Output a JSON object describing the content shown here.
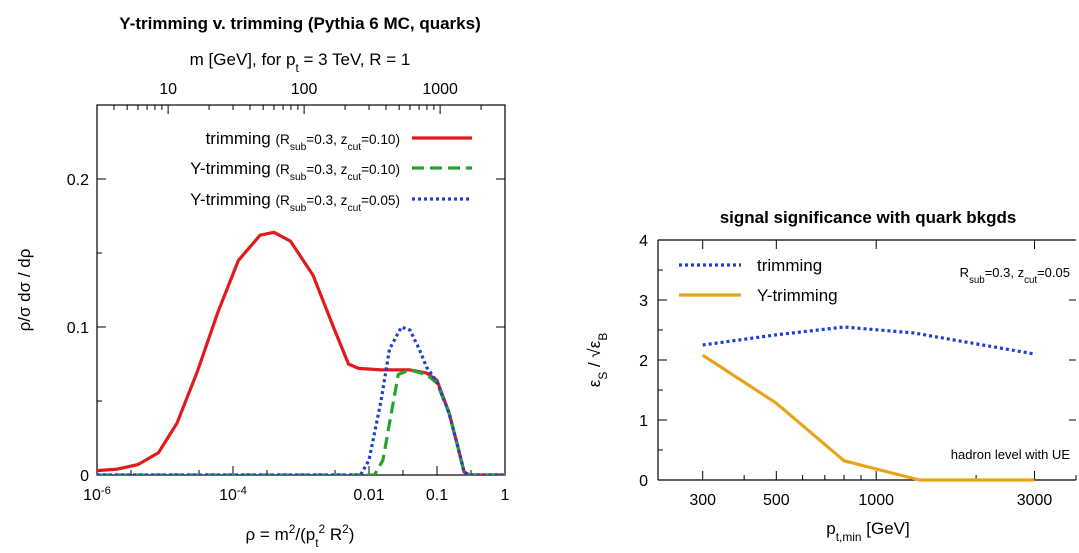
{
  "chart_data": [
    {
      "type": "line",
      "title": "Y-trimming v. trimming (Pythia 6 MC, quarks)",
      "top_axis": {
        "label_main": "m [GeV], for p",
        "label_sub": "t",
        "label_rest": " = 3 TeV, R = 1",
        "ticks": [
          {
            "value": 10,
            "label": "10"
          },
          {
            "value": 100,
            "label": "100"
          },
          {
            "value": 1000,
            "label": "1000"
          }
        ]
      },
      "xscale": "log",
      "xlim": [
        1e-06,
        1
      ],
      "ylim": [
        0,
        0.25
      ],
      "xlabel": "ρ = m²/(p_t² R²)",
      "ylabel": "ρ/σ dσ / dρ",
      "xticks": [
        {
          "value": 1e-06,
          "base": "10",
          "exp": "-6"
        },
        {
          "value": 0.0001,
          "base": "10",
          "exp": "-4"
        },
        {
          "value": 0.01,
          "base": "0.01",
          "exp": ""
        },
        {
          "value": 0.1,
          "base": "0.1",
          "exp": ""
        },
        {
          "value": 1,
          "base": "1",
          "exp": ""
        }
      ],
      "yticks": [
        {
          "value": 0,
          "label": "0"
        },
        {
          "value": 0.1,
          "label": "0.1"
        },
        {
          "value": 0.2,
          "label": "0.2"
        }
      ],
      "legend_position": "top-right",
      "series": [
        {
          "name": "trimming",
          "legend_params": "(R_sub=0.3, z_cut=0.10)",
          "color": "#e31a1c",
          "dash": "solid",
          "points": [
            [
              1e-06,
              0.003
            ],
            [
              2e-06,
              0.004
            ],
            [
              4e-06,
              0.007
            ],
            [
              8e-06,
              0.015
            ],
            [
              1.5e-05,
              0.035
            ],
            [
              3e-05,
              0.07
            ],
            [
              6e-05,
              0.11
            ],
            [
              0.00012,
              0.145
            ],
            [
              0.00025,
              0.162
            ],
            [
              0.0004,
              0.164
            ],
            [
              0.0007,
              0.158
            ],
            [
              0.0015,
              0.135
            ],
            [
              0.003,
              0.1
            ],
            [
              0.005,
              0.075
            ],
            [
              0.007,
              0.072
            ],
            [
              0.015,
              0.071
            ],
            [
              0.04,
              0.071
            ],
            [
              0.07,
              0.069
            ],
            [
              0.1,
              0.064
            ],
            [
              0.15,
              0.042
            ],
            [
              0.2,
              0.02
            ],
            [
              0.25,
              0.002
            ],
            [
              0.3,
              0.0
            ],
            [
              1,
              0.0
            ]
          ]
        },
        {
          "name": "Y-trimming",
          "legend_params": "(R_sub=0.3, z_cut=0.10)",
          "color": "#2ca02c",
          "dash": "dashed",
          "points": [
            [
              1e-06,
              0.0
            ],
            [
              0.012,
              0.0
            ],
            [
              0.016,
              0.01
            ],
            [
              0.02,
              0.035
            ],
            [
              0.027,
              0.068
            ],
            [
              0.04,
              0.071
            ],
            [
              0.07,
              0.068
            ],
            [
              0.1,
              0.062
            ],
            [
              0.15,
              0.042
            ],
            [
              0.2,
              0.02
            ],
            [
              0.25,
              0.002
            ],
            [
              0.3,
              0.0
            ],
            [
              1,
              0.0
            ]
          ]
        },
        {
          "name": "Y-trimming",
          "legend_params": "(R_sub=0.3, z_cut=0.05)",
          "color": "#1f3fd1",
          "dash": "dotted",
          "points": [
            [
              1e-06,
              0.0
            ],
            [
              0.0075,
              0.0
            ],
            [
              0.01,
              0.01
            ],
            [
              0.015,
              0.05
            ],
            [
              0.02,
              0.085
            ],
            [
              0.03,
              0.1
            ],
            [
              0.04,
              0.098
            ],
            [
              0.055,
              0.085
            ],
            [
              0.07,
              0.073
            ],
            [
              0.1,
              0.063
            ],
            [
              0.15,
              0.042
            ],
            [
              0.2,
              0.02
            ],
            [
              0.25,
              0.002
            ],
            [
              0.3,
              0.0
            ],
            [
              1,
              0.0
            ]
          ]
        }
      ]
    },
    {
      "type": "line",
      "title": "signal significance with quark bkgds",
      "xscale": "log",
      "xlim": [
        220,
        4000
      ],
      "ylim": [
        0,
        4
      ],
      "xlabel": "p_t,min [GeV]",
      "ylabel": "ε_S / √ε_B",
      "xticks": [
        {
          "value": 300,
          "label": "300"
        },
        {
          "value": 500,
          "label": "500"
        },
        {
          "value": 1000,
          "label": "1000"
        },
        {
          "value": 3000,
          "label": "3000"
        }
      ],
      "yticks": [
        {
          "value": 0,
          "label": "0"
        },
        {
          "value": 1,
          "label": "1"
        },
        {
          "value": 2,
          "label": "2"
        },
        {
          "value": 3,
          "label": "3"
        },
        {
          "value": 4,
          "label": "4"
        }
      ],
      "annotation_params": "R_sub=0.3, z_cut=0.05",
      "annotation_bottom": "hadron level with UE",
      "legend_position": "top-left",
      "series": [
        {
          "name": "trimming",
          "color": "#1f3fd1",
          "dash": "dotted",
          "points": [
            [
              300,
              2.25
            ],
            [
              500,
              2.42
            ],
            [
              800,
              2.55
            ],
            [
              1300,
              2.45
            ],
            [
              3000,
              2.1
            ]
          ]
        },
        {
          "name": "Y-trimming",
          "color": "#e8a317",
          "dash": "solid",
          "points": [
            [
              300,
              2.08
            ],
            [
              500,
              1.28
            ],
            [
              800,
              0.32
            ],
            [
              1350,
              0.0
            ],
            [
              3000,
              0.0
            ]
          ]
        }
      ]
    }
  ]
}
